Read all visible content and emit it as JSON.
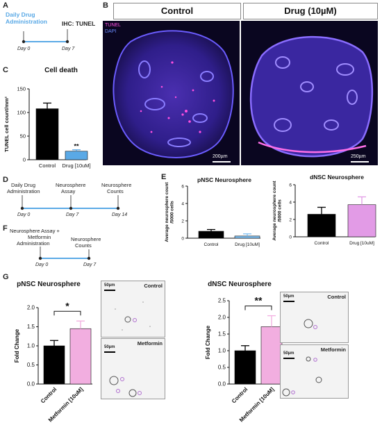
{
  "panels": {
    "a": {
      "letter": "A",
      "label_top": "Daily Drug\nAdministration",
      "label_right": "IHC: TUNEL",
      "tick_start": "Day 0",
      "tick_end": "Day 7",
      "colors": {
        "highlight": "#5aa9e6",
        "line": "#5aa9e6"
      }
    },
    "b": {
      "letter": "B",
      "header_left": "Control",
      "header_right": "Drug (10µM)",
      "legend_tunel": "TUNEL",
      "legend_dapi": "DAPI",
      "scale_left": "200µm",
      "scale_right": "250µm"
    },
    "c": {
      "letter": "C"
    },
    "d": {
      "letter": "D",
      "events": [
        "Daily Drug\nAdministration",
        "Neurosphere\nAssay",
        "Neurosphere\nCounts"
      ],
      "ticks": [
        "Day 0",
        "Day 7",
        "Day 14"
      ]
    },
    "e": {
      "letter": "E"
    },
    "f": {
      "letter": "F",
      "events": [
        "Neurosphere Assay +\nMetformin\nAdministration",
        "Neurosphere\nCounts"
      ],
      "ticks": [
        "Day 0",
        "Day 7"
      ]
    },
    "g": {
      "letter": "G",
      "left_img_labels": {
        "top": "Control",
        "bottom": "Metformin",
        "scale": "50µm"
      },
      "right_img_labels": {
        "top": "Control",
        "bottom": "Metformin",
        "scale": "50µm"
      }
    }
  },
  "chart_data": [
    {
      "id": "C",
      "type": "bar",
      "title": "Cell death",
      "ylabel": "TUNEL cell count/mm²",
      "categories": [
        "Control",
        "Drug [10uM]"
      ],
      "values": [
        108,
        18
      ],
      "errors": [
        12,
        3
      ],
      "ylim": [
        0,
        150
      ],
      "yticks": [
        0,
        50,
        100,
        150
      ],
      "colors": [
        "#000000",
        "#5aa9e6"
      ],
      "annotations": [
        {
          "category": "Drug [10uM]",
          "text": "**"
        }
      ]
    },
    {
      "id": "E-left",
      "type": "bar",
      "title": "pNSC Neurosphere",
      "ylabel": "Average neurosphere count\n/5000 cells",
      "categories": [
        "Control",
        "Drug [10uM]"
      ],
      "values": [
        0.8,
        0.25
      ],
      "errors": [
        0.2,
        0.25
      ],
      "ylim": [
        0,
        6
      ],
      "yticks": [
        0,
        2,
        4,
        6
      ],
      "colors": [
        "#000000",
        "#7fbff0"
      ]
    },
    {
      "id": "E-right",
      "type": "bar",
      "title": "dNSC Neurosphere",
      "ylabel": "Average neurosphere count\n/5000 cells",
      "categories": [
        "Control",
        "Drug [10uM]"
      ],
      "values": [
        2.6,
        3.7
      ],
      "errors": [
        0.8,
        0.9
      ],
      "ylim": [
        0,
        6
      ],
      "yticks": [
        0,
        2,
        4,
        6
      ],
      "colors": [
        "#000000",
        "#e29be6"
      ]
    },
    {
      "id": "G-left",
      "type": "bar",
      "title": "pNSC Neurosphere",
      "ylabel": "Fold Change",
      "categories": [
        "Control",
        "Metformin [10uM]"
      ],
      "values": [
        1.0,
        1.45
      ],
      "errors": [
        0.14,
        0.2
      ],
      "ylim": [
        0,
        2.0
      ],
      "yticks": [
        0.0,
        0.5,
        1.0,
        1.5,
        2.0
      ],
      "colors": [
        "#000000",
        "#f2aee0"
      ],
      "annotations": [
        {
          "bracket": true,
          "text": "*"
        }
      ]
    },
    {
      "id": "G-right",
      "type": "bar",
      "title": "dNSC Neurosphere",
      "ylabel": "Fold Change",
      "categories": [
        "Control",
        "Metformin [10uM]"
      ],
      "values": [
        1.0,
        1.72
      ],
      "errors": [
        0.15,
        0.33
      ],
      "ylim": [
        0,
        2.5
      ],
      "yticks": [
        0.0,
        0.5,
        1.0,
        1.5,
        2.0,
        2.5
      ],
      "colors": [
        "#000000",
        "#f2aee0"
      ],
      "annotations": [
        {
          "bracket": true,
          "text": "**"
        }
      ]
    }
  ]
}
